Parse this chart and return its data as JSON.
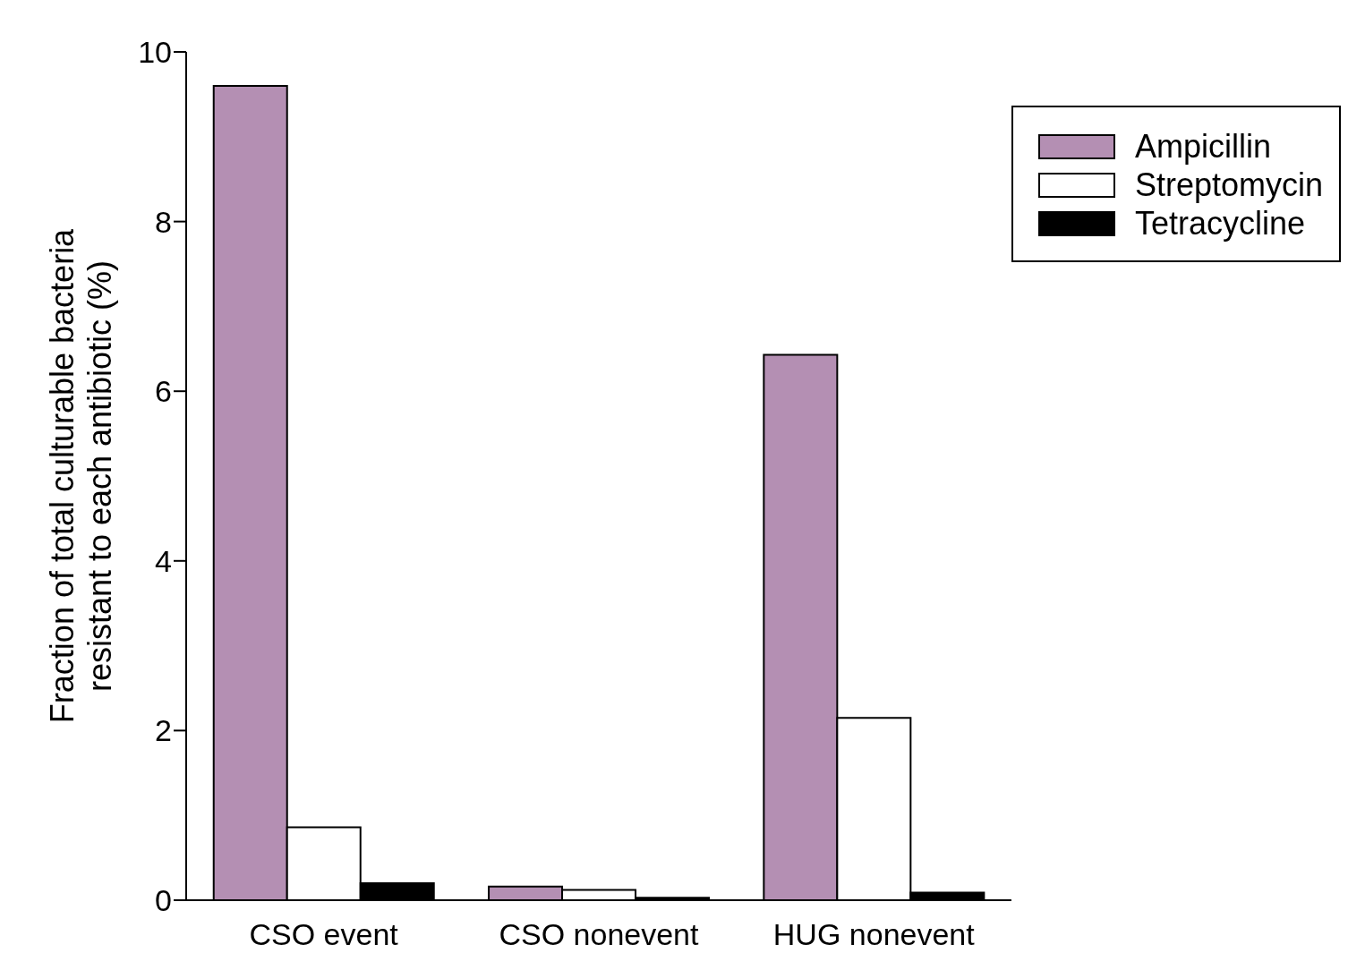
{
  "chart_data": {
    "type": "bar",
    "ylabel": "Fraction of total culturable bacteria resistant to each antibiotic (%)",
    "categories": [
      "CSO event",
      "CSO nonevent",
      "HUG nonevent"
    ],
    "series": [
      {
        "name": "Ampicillin",
        "color": "#b48fb3",
        "values": [
          9.6,
          0.16,
          6.43
        ]
      },
      {
        "name": "Streptomycin",
        "color": "#ffffff",
        "values": [
          0.86,
          0.12,
          2.15
        ]
      },
      {
        "name": "Tetracycline",
        "color": "#000000",
        "values": [
          0.2,
          0.03,
          0.09
        ]
      }
    ],
    "ylim": [
      0,
      10
    ],
    "yticks": [
      0,
      2,
      4,
      6,
      8,
      10
    ],
    "grid": false,
    "legend": "top right"
  }
}
